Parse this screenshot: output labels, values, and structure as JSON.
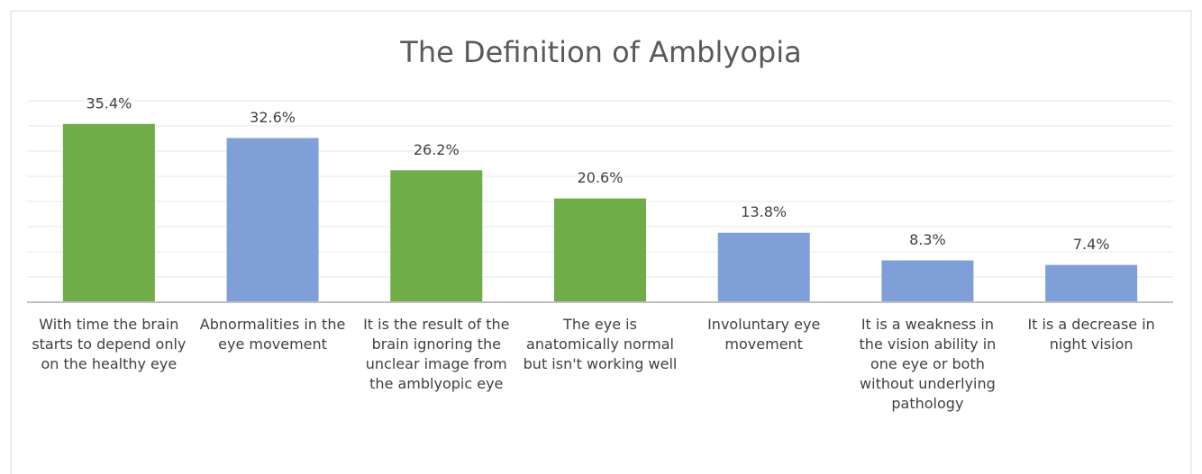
{
  "chart_data": {
    "type": "bar",
    "title": "The Definition of Amblyopia",
    "categories": [
      "With time the brain starts to depend only on the healthy eye",
      "Abnormalities in the eye movement",
      "It is the result of the brain ignoring the unclear image from the amblyopic eye",
      "The eye is anatomically normal but isn't working well",
      "Involuntary eye movement",
      "It is a weakness in the vision ability in one eye or both without underlying pathology",
      "It is a decrease in night vision"
    ],
    "values": [
      35.4,
      32.6,
      26.2,
      20.6,
      13.8,
      8.3,
      7.4
    ],
    "value_labels": [
      "35.4%",
      "32.6%",
      "26.2%",
      "20.6%",
      "13.8%",
      "8.3%",
      "7.4%"
    ],
    "colors": [
      "#70ad47",
      "#7f9fd9",
      "#70ad47",
      "#70ad47",
      "#7f9fd9",
      "#7f9fd9",
      "#7f9fd9"
    ],
    "ylim": [
      0,
      40
    ],
    "yticks": [
      0,
      5,
      10,
      15,
      20,
      25,
      30,
      35,
      40
    ],
    "grid": true
  }
}
